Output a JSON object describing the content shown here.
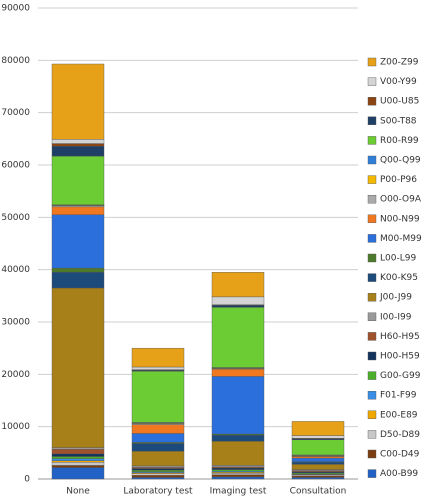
{
  "chart_data": {
    "type": "bar",
    "stacked": true,
    "categories": [
      "None",
      "Laboratory test",
      "Imaging test",
      "Consultation"
    ],
    "ylim": [
      0,
      90000
    ],
    "yticks": [
      0,
      10000,
      20000,
      30000,
      40000,
      50000,
      60000,
      70000,
      80000,
      90000
    ],
    "grid": true,
    "legend": "right",
    "series": [
      {
        "name": "A00-B99",
        "color": "#2262c6",
        "values": [
          2200,
          300,
          400,
          300
        ]
      },
      {
        "name": "C00-D49",
        "color": "#7a3e10",
        "values": [
          400,
          400,
          400,
          300
        ]
      },
      {
        "name": "D50-D89",
        "color": "#c8c8c8",
        "values": [
          600,
          300,
          300,
          200
        ]
      },
      {
        "name": "E00-E89",
        "color": "#f0a800",
        "values": [
          300,
          200,
          200,
          100
        ]
      },
      {
        "name": "F01-F99",
        "color": "#3a8ee6",
        "values": [
          400,
          200,
          200,
          100
        ]
      },
      {
        "name": "G00-G99",
        "color": "#4caf2a",
        "values": [
          400,
          300,
          300,
          200
        ]
      },
      {
        "name": "H00-H59",
        "color": "#13335c",
        "values": [
          500,
          300,
          300,
          200
        ]
      },
      {
        "name": "H60-H95",
        "color": "#a0522d",
        "values": [
          900,
          200,
          200,
          200
        ]
      },
      {
        "name": "I00-I99",
        "color": "#999999",
        "values": [
          300,
          300,
          300,
          200
        ]
      },
      {
        "name": "J00-J99",
        "color": "#a8801a",
        "values": [
          30500,
          2800,
          4600,
          1000
        ]
      },
      {
        "name": "K00-K95",
        "color": "#1c4a7a",
        "values": [
          3000,
          1500,
          1200,
          400
        ]
      },
      {
        "name": "L00-L99",
        "color": "#4d7a2a",
        "values": [
          800,
          200,
          200,
          100
        ]
      },
      {
        "name": "M00-M99",
        "color": "#2a6fdb",
        "values": [
          10200,
          1700,
          11000,
          700
        ]
      },
      {
        "name": "N00-N99",
        "color": "#f07820",
        "values": [
          1500,
          1700,
          1400,
          300
        ]
      },
      {
        "name": "O00-O9A",
        "color": "#aaaaaa",
        "values": [
          200,
          200,
          100,
          100
        ]
      },
      {
        "name": "P00-P96",
        "color": "#f5b800",
        "values": [
          100,
          100,
          100,
          100
        ]
      },
      {
        "name": "Q00-Q99",
        "color": "#2f7ed8",
        "values": [
          100,
          100,
          100,
          100
        ]
      },
      {
        "name": "R00-R99",
        "color": "#6ccc33",
        "values": [
          9300,
          9800,
          11500,
          2900
        ]
      },
      {
        "name": "S00-T88",
        "color": "#1f3f66",
        "values": [
          1900,
          200,
          400,
          200
        ]
      },
      {
        "name": "U00-U85",
        "color": "#8b4513",
        "values": [
          500,
          100,
          100,
          100
        ]
      },
      {
        "name": "V00-Y99",
        "color": "#d4d4d4",
        "values": [
          800,
          500,
          1500,
          500
        ]
      },
      {
        "name": "Z00-Z99",
        "color": "#e6a118",
        "values": [
          14400,
          3600,
          4700,
          2700
        ]
      }
    ]
  }
}
